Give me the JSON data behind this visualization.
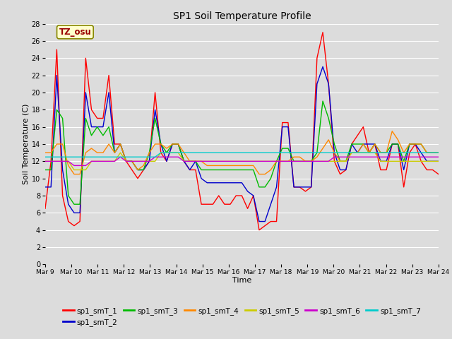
{
  "title": "SP1 Soil Temperature Profile",
  "xlabel": "Time",
  "ylabel": "Soil Temperature (C)",
  "annotation": "TZ_osu",
  "ylim": [
    0,
    28
  ],
  "yticks": [
    0,
    2,
    4,
    6,
    8,
    10,
    12,
    14,
    16,
    18,
    20,
    22,
    24,
    26,
    28
  ],
  "xtick_labels": [
    "Mar 9",
    "Mar 10",
    "Mar 11",
    "Mar 12",
    "Mar 13",
    "Mar 14",
    "Mar 15",
    "Mar 16",
    "Mar 17",
    "Mar 18",
    "Mar 19",
    "Mar 20",
    "Mar 21",
    "Mar 22",
    "Mar 23",
    "Mar 24"
  ],
  "bg_color": "#dcdcdc",
  "series_colors": {
    "sp1_smT_1": "#ff0000",
    "sp1_smT_2": "#0000cc",
    "sp1_smT_3": "#00bb00",
    "sp1_smT_4": "#ff8800",
    "sp1_smT_5": "#cccc00",
    "sp1_smT_6": "#cc00cc",
    "sp1_smT_7": "#00cccc"
  },
  "sp1_smT_1": [
    6.5,
    12,
    25,
    8,
    5,
    4.5,
    5,
    24,
    18,
    17,
    17,
    22,
    14,
    14,
    12,
    11,
    10,
    11,
    12,
    20,
    13,
    12,
    14,
    14,
    12,
    11,
    11,
    7,
    7,
    7,
    8,
    7,
    7,
    8,
    8,
    6.5,
    8,
    4,
    4.5,
    5,
    5,
    16.5,
    16.5,
    9,
    9,
    8.5,
    9,
    24,
    27,
    21,
    12,
    10.5,
    11,
    14,
    15,
    16,
    13,
    14,
    11,
    11,
    14,
    14,
    9,
    13,
    14,
    12,
    11,
    11,
    10.5
  ],
  "sp1_smT_2": [
    9,
    9,
    22,
    11,
    7,
    6,
    6,
    20,
    16,
    16,
    16,
    20,
    13,
    14,
    12,
    12,
    11,
    11,
    12,
    18,
    14,
    12,
    14,
    14,
    12,
    11,
    12,
    10,
    9.5,
    9.5,
    9.5,
    9.5,
    9.5,
    9.5,
    9.5,
    8.5,
    8,
    5,
    5,
    7,
    9,
    16,
    16,
    9,
    9,
    9,
    9,
    21,
    23,
    21,
    13,
    11,
    11,
    14,
    13,
    14,
    14,
    14,
    12,
    12,
    14,
    14,
    11,
    14,
    14,
    13,
    12,
    12,
    12
  ],
  "sp1_smT_3": [
    11,
    11,
    18,
    17,
    8,
    7,
    7,
    17,
    15,
    16,
    15,
    16,
    13,
    14,
    12,
    12,
    11,
    11,
    13,
    17,
    14,
    13,
    14,
    14,
    12,
    12,
    12,
    11,
    11,
    11,
    11,
    11,
    11,
    11,
    11,
    11,
    11,
    9,
    9,
    10,
    12,
    13.5,
    13.5,
    12,
    12,
    12,
    12,
    13,
    19,
    17,
    14,
    12,
    12,
    14,
    14,
    14,
    13,
    14,
    13,
    13,
    14,
    14,
    12,
    14,
    14,
    14,
    13,
    13,
    13
  ],
  "sp1_smT_4": [
    13,
    13,
    14,
    14,
    11.5,
    10.5,
    10.5,
    13,
    13.5,
    13,
    13,
    14,
    13,
    14,
    12,
    12,
    11,
    11.5,
    13,
    14,
    14,
    13.5,
    14,
    14,
    13,
    12,
    12,
    12,
    11.5,
    11.5,
    11.5,
    11.5,
    11.5,
    11.5,
    11.5,
    11.5,
    11.5,
    10.5,
    10.5,
    11,
    12,
    12,
    12,
    12.5,
    12.5,
    12,
    12,
    12.5,
    13.5,
    14.5,
    13,
    12,
    12,
    13,
    13,
    14,
    13,
    14,
    13,
    13,
    15.5,
    14.5,
    13,
    14,
    14,
    14,
    13,
    13,
    13
  ],
  "sp1_smT_5": [
    12,
    12,
    12,
    12,
    12,
    11,
    11,
    11,
    12,
    12,
    12,
    12,
    12,
    13,
    12,
    12,
    12,
    12,
    12,
    12,
    13,
    13,
    13,
    13,
    12,
    12,
    12,
    12,
    12,
    12,
    12,
    12,
    12,
    12,
    12,
    12,
    12,
    12,
    12,
    12,
    12,
    12,
    12,
    12,
    12,
    12,
    12,
    12,
    12,
    12,
    12,
    12,
    12,
    13,
    13,
    13,
    13,
    13,
    12,
    12,
    12,
    12,
    12,
    12,
    12,
    12,
    12,
    12,
    12
  ],
  "sp1_smT_6": [
    12,
    12,
    12,
    12,
    12,
    11.5,
    11.5,
    11.5,
    12,
    12,
    12,
    12,
    12,
    12.5,
    12,
    12,
    12,
    12,
    12,
    12.5,
    12.5,
    12.5,
    12.5,
    12.5,
    12,
    12,
    12,
    12,
    12,
    12,
    12,
    12,
    12,
    12,
    12,
    12,
    12,
    12,
    12,
    12,
    12,
    12,
    12,
    12,
    12,
    12,
    12,
    12,
    12,
    12,
    12.5,
    12.5,
    12.5,
    12.5,
    12.5,
    12.5,
    12.5,
    12.5,
    12.5,
    12.5,
    12.5,
    12.5,
    12.5,
    12.5,
    12.5,
    12.5,
    12.5,
    12.5,
    12.5
  ],
  "sp1_smT_7": [
    12.5,
    12.5,
    12.5,
    12.5,
    12.5,
    12.5,
    12.5,
    12.5,
    12.5,
    12.5,
    12.5,
    12.5,
    12.5,
    12.5,
    12.5,
    12.5,
    12.5,
    12.5,
    12.5,
    12.5,
    13,
    13,
    13,
    13,
    13,
    13,
    13,
    13,
    13,
    13,
    13,
    13,
    13,
    13,
    13,
    13,
    13,
    13,
    13,
    13,
    13,
    13,
    13,
    13,
    13,
    13,
    13,
    13,
    13,
    13,
    13,
    13,
    13,
    13,
    13,
    13,
    13,
    13,
    13,
    13,
    13,
    13,
    13,
    13,
    13,
    13,
    13,
    13,
    13
  ]
}
